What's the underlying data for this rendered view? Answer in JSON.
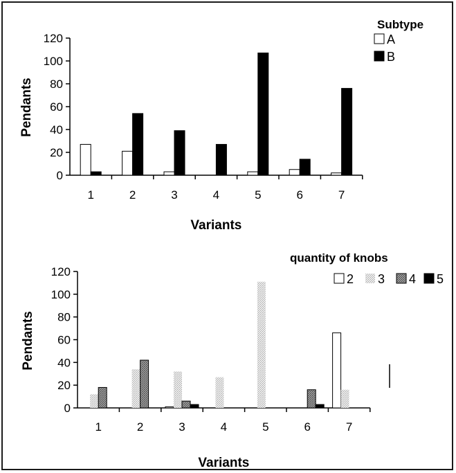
{
  "chart_data": [
    {
      "type": "bar",
      "categories": [
        "1",
        "2",
        "3",
        "4",
        "5",
        "6",
        "7"
      ],
      "xlabel": "Variants",
      "ylabel": "Pendants",
      "ylim": [
        0,
        120
      ],
      "yticks": [
        "0",
        "20",
        "40",
        "60",
        "80",
        "100",
        "120"
      ],
      "grid": false,
      "legend_title": "Subtype",
      "legend_position": "top-right",
      "series": [
        {
          "name": "A",
          "color": "#ffffff",
          "values": [
            27,
            21,
            3,
            0,
            3,
            5,
            2
          ]
        },
        {
          "name": "B",
          "color": "#000000",
          "values": [
            3,
            54,
            39,
            27,
            107,
            14,
            76
          ]
        }
      ]
    },
    {
      "type": "bar",
      "categories": [
        "1",
        "2",
        "3",
        "4",
        "5",
        "6",
        "7"
      ],
      "xlabel": "Variants",
      "ylabel": "Pendants",
      "ylim": [
        0,
        120
      ],
      "yticks": [
        "0",
        "20",
        "40",
        "60",
        "80",
        "100",
        "120"
      ],
      "grid": false,
      "legend_title": "quantity of knobs",
      "legend_position": "top-right",
      "series": [
        {
          "name": "2",
          "color": "#ffffff",
          "values": [
            0,
            0,
            1,
            0,
            0,
            0,
            66
          ]
        },
        {
          "name": "3",
          "color": "#d8d8d8",
          "values": [
            12,
            34,
            32,
            27,
            111,
            0,
            16
          ]
        },
        {
          "name": "4",
          "color": "#8c8c8c",
          "values": [
            18,
            42,
            6,
            0,
            0,
            16,
            0
          ]
        },
        {
          "name": "5",
          "color": "#000000",
          "values": [
            0,
            0,
            3,
            0,
            0,
            3,
            0
          ]
        }
      ]
    }
  ]
}
